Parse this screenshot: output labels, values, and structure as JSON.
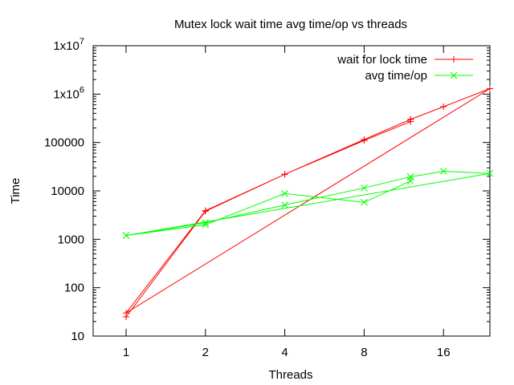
{
  "chart_data": {
    "type": "line",
    "title": "Mutex lock wait time  avg time/op vs threads",
    "xlabel": "Threads",
    "ylabel": "Time",
    "x_scale": "log2",
    "y_scale": "log10",
    "xlim": [
      0.75,
      24
    ],
    "ylim": [
      10,
      10000000
    ],
    "x_ticks": [
      1,
      2,
      4,
      8,
      16
    ],
    "x_tick_labels": [
      "1",
      "2",
      "4",
      "8",
      "16"
    ],
    "y_ticks": [
      10,
      100,
      1000,
      10000,
      100000,
      1000000,
      10000000
    ],
    "y_tick_labels": [
      {
        "base": "10",
        "exp": ""
      },
      {
        "base": "100",
        "exp": ""
      },
      {
        "base": "1000",
        "exp": ""
      },
      {
        "base": "10000",
        "exp": ""
      },
      {
        "base": "100000",
        "exp": ""
      },
      {
        "base": "1x10",
        "exp": "6"
      },
      {
        "base": "1x10",
        "exp": "7"
      }
    ],
    "grid": false,
    "legend_position": "top-right",
    "series": [
      {
        "name": "wait for lock time",
        "color": "#ff0000",
        "marker": "plus",
        "points": [
          [
            1,
            25
          ],
          [
            2,
            3800
          ],
          [
            4,
            22000
          ],
          [
            8,
            110000
          ],
          [
            12,
            270000
          ],
          [
            12,
            300000
          ],
          [
            8,
            115000
          ],
          [
            4,
            22000
          ],
          [
            2,
            3900
          ],
          [
            1,
            30
          ],
          [
            24,
            1300000
          ],
          [
            16,
            550000
          ],
          [
            12,
            300000
          ]
        ]
      },
      {
        "name": "avg time/op",
        "color": "#00ff00",
        "marker": "cross",
        "points": [
          [
            1,
            1200
          ],
          [
            2,
            2000
          ],
          [
            4,
            8800
          ],
          [
            8,
            5800
          ],
          [
            12,
            16000
          ],
          [
            12,
            19500
          ],
          [
            8,
            11500
          ],
          [
            4,
            5100
          ],
          [
            2,
            2200
          ],
          [
            1,
            1200
          ],
          [
            24,
            23000
          ],
          [
            16,
            25500
          ],
          [
            12,
            19500
          ]
        ]
      }
    ]
  }
}
